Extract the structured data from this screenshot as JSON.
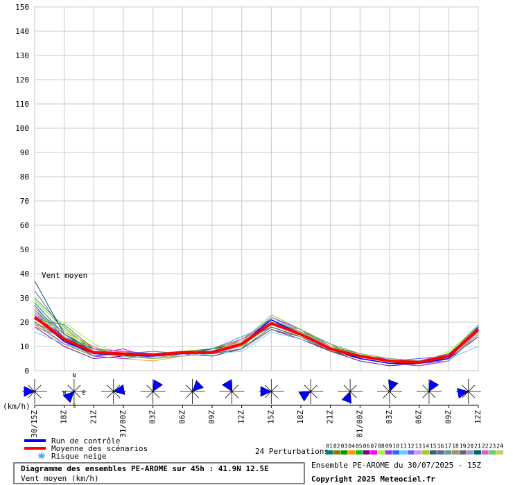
{
  "chart_data": {
    "type": "line",
    "title": "Diagramme des ensembles PE-AROME sur 45h : 41.9N 12.5E",
    "subtitle": "Vent moyen (km/h)",
    "annotation": "Vent moyen",
    "y_unit": "(km/h)",
    "run_info": "Ensemble PE-AROME du 30/07/2025 - 15Z",
    "copyright": "Copyright 2025 Meteociel.fr",
    "perturbations_label": "24 Perturbations",
    "snow_label": "Risque neige",
    "compass_labels": [
      "N",
      "W",
      "E",
      "S"
    ],
    "categories": [
      "30/15Z",
      "18Z",
      "21Z",
      "31/00Z",
      "03Z",
      "06Z",
      "09Z",
      "12Z",
      "15Z",
      "18Z",
      "21Z",
      "01/00Z",
      "03Z",
      "06Z",
      "09Z",
      "12Z"
    ],
    "ylim": [
      0,
      150
    ],
    "yticks": [
      0,
      10,
      20,
      30,
      40,
      50,
      60,
      70,
      80,
      90,
      100,
      110,
      120,
      130,
      140,
      150
    ],
    "grid": true,
    "wind_rose_directions": [
      270,
      225,
      80,
      30,
      45,
      330,
      270,
      240,
      200,
      20,
      30,
      260
    ],
    "series": [
      {
        "name": "Run de contrôle",
        "color": "#0000ff",
        "values": [
          22,
          12,
          7,
          6.5,
          6,
          7,
          8,
          11,
          21,
          15,
          9,
          5,
          3,
          3,
          5,
          18
        ]
      },
      {
        "name": "Moyenne des scénarios",
        "color": "#ff0000",
        "values": [
          22,
          13,
          7.5,
          7,
          6.5,
          7.5,
          7.5,
          11,
          19.5,
          15,
          9,
          6,
          4,
          3.5,
          6,
          17
        ]
      },
      {
        "name": "01",
        "color": "#008080",
        "values": [
          28,
          15,
          9,
          6,
          5,
          6,
          7,
          10,
          20,
          16,
          10,
          6,
          4,
          3,
          5,
          19
        ]
      },
      {
        "name": "02",
        "color": "#808000",
        "values": [
          20,
          11,
          6,
          8,
          7,
          8,
          9,
          12,
          18,
          14,
          8,
          5,
          3,
          4,
          7,
          16
        ]
      },
      {
        "name": "03",
        "color": "#009900",
        "values": [
          25,
          14,
          8,
          7,
          6,
          7,
          7,
          9,
          22,
          17,
          10,
          7,
          5,
          4,
          6,
          18
        ]
      },
      {
        "name": "04",
        "color": "#ff9900",
        "values": [
          19,
          16,
          10,
          5,
          4,
          6,
          8,
          13,
          19,
          15,
          9,
          6,
          4,
          2,
          4,
          15
        ]
      },
      {
        "name": "05",
        "color": "#00cc00",
        "values": [
          30,
          18,
          8,
          7,
          7,
          8,
          8,
          11,
          21,
          16,
          11,
          5,
          3,
          3,
          6,
          19
        ]
      },
      {
        "name": "06",
        "color": "#800080",
        "values": [
          18,
          10,
          5,
          6,
          6,
          7,
          6,
          9,
          17,
          13,
          8,
          4,
          2,
          3,
          5,
          14
        ]
      },
      {
        "name": "07",
        "color": "#ff00ff",
        "values": [
          24,
          12,
          7,
          9,
          5,
          6,
          8,
          12,
          20,
          16,
          10,
          6,
          5,
          4,
          7,
          17
        ]
      },
      {
        "name": "08",
        "color": "#99ff33",
        "values": [
          21,
          20,
          11,
          7,
          6,
          7,
          9,
          10,
          19,
          15,
          9,
          7,
          4,
          3,
          8,
          18
        ]
      },
      {
        "name": "09",
        "color": "#9933ff",
        "values": [
          27,
          13,
          6,
          5,
          6,
          8,
          7,
          11,
          22,
          17,
          8,
          5,
          3,
          2,
          4,
          16
        ]
      },
      {
        "name": "10",
        "color": "#3366ff",
        "values": [
          23,
          14,
          9,
          8,
          7,
          7,
          8,
          12,
          18,
          14,
          10,
          6,
          4,
          5,
          6,
          17
        ]
      },
      {
        "name": "11",
        "color": "#66ccff",
        "values": [
          16,
          11,
          7,
          6,
          5,
          6,
          7,
          8,
          16,
          13,
          9,
          5,
          3,
          3,
          5,
          10
        ]
      },
      {
        "name": "12",
        "color": "#6666ff",
        "values": [
          26,
          15,
          8,
          7,
          8,
          7,
          9,
          13,
          21,
          16,
          10,
          6,
          4,
          3,
          6,
          19
        ]
      },
      {
        "name": "13",
        "color": "#cc99ff",
        "values": [
          22,
          12,
          10,
          6,
          6,
          8,
          7,
          10,
          20,
          15,
          11,
          7,
          5,
          4,
          5,
          18
        ]
      },
      {
        "name": "14",
        "color": "#99cc33",
        "values": [
          29,
          17,
          9,
          7,
          5,
          6,
          8,
          12,
          23,
          17,
          9,
          5,
          3,
          3,
          7,
          19
        ]
      },
      {
        "name": "15",
        "color": "#336666",
        "values": [
          20,
          13,
          6,
          7,
          7,
          7,
          7,
          9,
          18,
          14,
          8,
          6,
          4,
          4,
          6,
          16
        ]
      },
      {
        "name": "16",
        "color": "#666699",
        "values": [
          33,
          16,
          8,
          6,
          6,
          7,
          8,
          11,
          21,
          16,
          10,
          5,
          3,
          2,
          5,
          17
        ]
      },
      {
        "name": "17",
        "color": "#669999",
        "values": [
          18,
          14,
          7,
          8,
          6,
          6,
          9,
          14,
          19,
          15,
          9,
          6,
          4,
          3,
          4,
          15
        ]
      },
      {
        "name": "18",
        "color": "#999966",
        "values": [
          25,
          12,
          8,
          7,
          7,
          8,
          8,
          10,
          20,
          17,
          11,
          7,
          5,
          4,
          6,
          18
        ]
      },
      {
        "name": "19",
        "color": "#666666",
        "values": [
          21,
          19,
          9,
          6,
          5,
          7,
          7,
          9,
          17,
          14,
          8,
          5,
          3,
          3,
          7,
          16
        ]
      },
      {
        "name": "20",
        "color": "#9999cc",
        "values": [
          24,
          13,
          7,
          7,
          6,
          6,
          8,
          12,
          22,
          16,
          10,
          6,
          4,
          4,
          5,
          19
        ]
      },
      {
        "name": "21",
        "color": "#006666",
        "values": [
          37,
          15,
          8,
          6,
          7,
          7,
          9,
          11,
          20,
          15,
          9,
          5,
          3,
          3,
          6,
          17
        ]
      },
      {
        "name": "22",
        "color": "#cc66cc",
        "values": [
          19,
          11,
          9,
          8,
          6,
          8,
          7,
          13,
          19,
          15,
          10,
          6,
          4,
          2,
          5,
          18
        ]
      },
      {
        "name": "23",
        "color": "#66cc66",
        "values": [
          26,
          14,
          7,
          6,
          5,
          7,
          8,
          10,
          21,
          16,
          9,
          7,
          5,
          4,
          6,
          17
        ]
      },
      {
        "name": "24",
        "color": "#cccc66",
        "values": [
          22,
          16,
          8,
          7,
          7,
          6,
          8,
          12,
          20,
          14,
          10,
          6,
          4,
          3,
          5,
          16
        ]
      }
    ]
  }
}
